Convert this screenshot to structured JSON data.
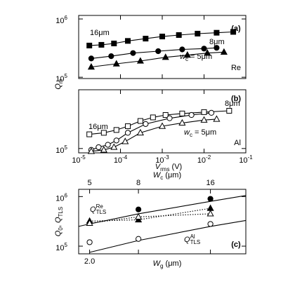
{
  "chart_data": [
    {
      "type": "scatter",
      "panel_label": "(a)",
      "material": "Re",
      "xscale": "log",
      "yscale": "log",
      "xlim": [
        1e-05,
        0.1
      ],
      "xticks": [
        1e-05,
        0.0001,
        0.001,
        0.01,
        0.1
      ],
      "ylim": [
        95000,
        1150000
      ],
      "yticks": [
        {
          "value": 100000,
          "label": [
            {
              "t": "10"
            },
            {
              "sup": "5"
            }
          ]
        },
        {
          "value": 1000000,
          "label": [
            {
              "t": "10"
            },
            {
              "sup": "6"
            }
          ]
        }
      ],
      "ylabel": [
        {
          "i": "Q"
        },
        {
          "sub": "m"
        }
      ],
      "annotations": [
        [
          {
            "t": "16μm"
          }
        ],
        [
          {
            "t": "8μm"
          }
        ],
        [
          {
            "i": "w"
          },
          {
            "sub": "c"
          },
          {
            "t": " = 5μm"
          }
        ]
      ],
      "series": [
        {
          "marker": "square",
          "filled": true,
          "line": "solid",
          "color": "#000000",
          "x": [
            1.8e-05,
            3.5e-05,
            7e-05,
            0.00015,
            0.0004,
            0.001,
            0.0025,
            0.007,
            0.02,
            0.05
          ],
          "values": [
            350000,
            360000,
            380000,
            420000,
            460000,
            500000,
            530000,
            560000,
            580000,
            600000
          ]
        },
        {
          "marker": "circle",
          "filled": true,
          "line": "solid",
          "color": "#000000",
          "x": [
            2e-05,
            6e-05,
            0.0002,
            0.0008,
            0.003,
            0.01,
            0.02
          ],
          "values": [
            210000,
            230000,
            260000,
            280000,
            300000,
            310000,
            320000
          ]
        },
        {
          "marker": "triangle",
          "filled": true,
          "line": "solid",
          "color": "#000000",
          "x": [
            2e-05,
            8e-05,
            0.0003,
            0.0012,
            0.004,
            0.012,
            0.03
          ],
          "values": [
            150000,
            170000,
            190000,
            220000,
            240000,
            260000,
            270000
          ]
        }
      ]
    },
    {
      "type": "scatter",
      "panel_label": "(b)",
      "material": "Al",
      "xscale": "log",
      "yscale": "log",
      "xlim": [
        1e-05,
        0.1
      ],
      "xticks": [
        {
          "value": 1e-05,
          "label": [
            {
              "t": "10"
            },
            {
              "sup": "-5"
            }
          ]
        },
        {
          "value": 0.0001,
          "label": [
            {
              "t": "10"
            },
            {
              "sup": "-4"
            }
          ]
        },
        {
          "value": 0.001,
          "label": [
            {
              "t": "10"
            },
            {
              "sup": "-3"
            }
          ]
        },
        {
          "value": 0.01,
          "label": [
            {
              "t": "10"
            },
            {
              "sup": "-2"
            }
          ]
        },
        {
          "value": 0.1,
          "label": [
            {
              "t": "10"
            },
            {
              "sup": "-1"
            }
          ]
        }
      ],
      "xlabel": [
        {
          "i": "V"
        },
        {
          "sub": "rms"
        },
        {
          "t": " (V)"
        }
      ],
      "ylim": [
        85000,
        900000
      ],
      "yticks": [
        {
          "value": 100000,
          "label": [
            {
              "t": "10"
            },
            {
              "sup": "5"
            }
          ]
        }
      ],
      "annotations": [
        [
          {
            "t": "16μm"
          }
        ],
        [
          {
            "t": "8μm"
          }
        ],
        [
          {
            "i": "w"
          },
          {
            "sub": "c"
          },
          {
            "t": " = 5μm"
          }
        ]
      ],
      "series": [
        {
          "marker": "square",
          "filled": false,
          "line": "solid",
          "color": "#000000",
          "x": [
            1.8e-05,
            4e-05,
            8e-05,
            0.00015,
            0.0003,
            0.0006,
            0.0012,
            0.003,
            0.01,
            0.04
          ],
          "values": [
            170000,
            180000,
            200000,
            230000,
            280000,
            320000,
            350000,
            370000,
            390000,
            410000
          ]
        },
        {
          "marker": "circle",
          "filled": false,
          "line": "solid",
          "color": "#000000",
          "x": [
            2e-05,
            3e-05,
            5e-05,
            8e-05,
            0.00015,
            0.0004,
            0.0015,
            0.005,
            0.015
          ],
          "values": [
            95000,
            105000,
            115000,
            135000,
            180000,
            250000,
            310000,
            350000,
            380000
          ]
        },
        {
          "marker": "triangle",
          "filled": false,
          "line": "solid",
          "color": "#000000",
          "x": [
            2e-05,
            4e-05,
            7e-05,
            0.00013,
            0.0003,
            0.001,
            0.003,
            0.01,
            0.02
          ],
          "values": [
            90000,
            95000,
            105000,
            130000,
            180000,
            230000,
            260000,
            290000,
            300000
          ]
        }
      ]
    },
    {
      "type": "scatter",
      "panel_label": "(c)",
      "xscale": "log",
      "yscale": "log",
      "xlim": [
        1.8,
        9
      ],
      "xticks": [
        {
          "value": 2,
          "label": "2.0"
        },
        3.2,
        6.4
      ],
      "xlabel": [
        {
          "i": "W"
        },
        {
          "sub": "g"
        },
        {
          "t": " (μm)"
        }
      ],
      "x2lim": [
        4.5,
        22.5
      ],
      "x2ticks": [
        5,
        8,
        16
      ],
      "x2label": [
        {
          "i": "W"
        },
        {
          "sub": "c"
        },
        {
          "t": " (μm)"
        }
      ],
      "ylim": [
        70000,
        1400000
      ],
      "yticks": [
        {
          "value": 100000,
          "label": [
            {
              "t": "10"
            },
            {
              "sup": "5"
            }
          ]
        },
        {
          "value": 1000000,
          "label": [
            {
              "t": "10"
            },
            {
              "sup": "6"
            }
          ]
        }
      ],
      "ylabel": [
        {
          "i": "Q"
        },
        {
          "sub": "0"
        },
        {
          "t": ", "
        },
        {
          "i": "Q"
        },
        {
          "sub": "TLS"
        }
      ],
      "annotations": [
        [
          {
            "i": "Q"
          },
          {
            "sup": "Re"
          },
          {
            "sub": "TLS"
          }
        ],
        [
          {
            "i": "Q"
          },
          {
            "sup": "Al"
          },
          {
            "sub": "TLS"
          }
        ]
      ],
      "series": [
        {
          "marker": "circle",
          "filled": true,
          "line": null,
          "color": "#000000",
          "x": [
            2,
            3.2,
            6.4
          ],
          "values": [
            null,
            550000,
            900000
          ]
        },
        {
          "marker": "triangle",
          "filled": true,
          "line": "dotted",
          "color": "#000000",
          "x": [
            2,
            3.2,
            6.4
          ],
          "values": [
            320000,
            340000,
            580000
          ]
        },
        {
          "marker": "triangle",
          "filled": false,
          "line": "dotted",
          "color": "#000000",
          "x": [
            2,
            3.2,
            6.4
          ],
          "values": [
            290000,
            390000,
            450000
          ]
        },
        {
          "marker": "circle",
          "filled": false,
          "line": null,
          "color": "#000000",
          "x": [
            2,
            3.2,
            6.4
          ],
          "values": [
            120000,
            140000,
            280000
          ]
        },
        {
          "marker": null,
          "line": "solid",
          "color": "#000000",
          "x": [
            1.8,
            2,
            3.2,
            6.4,
            9
          ],
          "values": [
            250000,
            280000,
            450000,
            800000,
            1050000
          ]
        },
        {
          "marker": null,
          "line": "solid",
          "color": "#000000",
          "x": [
            2,
            3.2,
            6.4,
            9
          ],
          "values": [
            75000,
            130000,
            250000,
            330000
          ]
        }
      ]
    }
  ]
}
